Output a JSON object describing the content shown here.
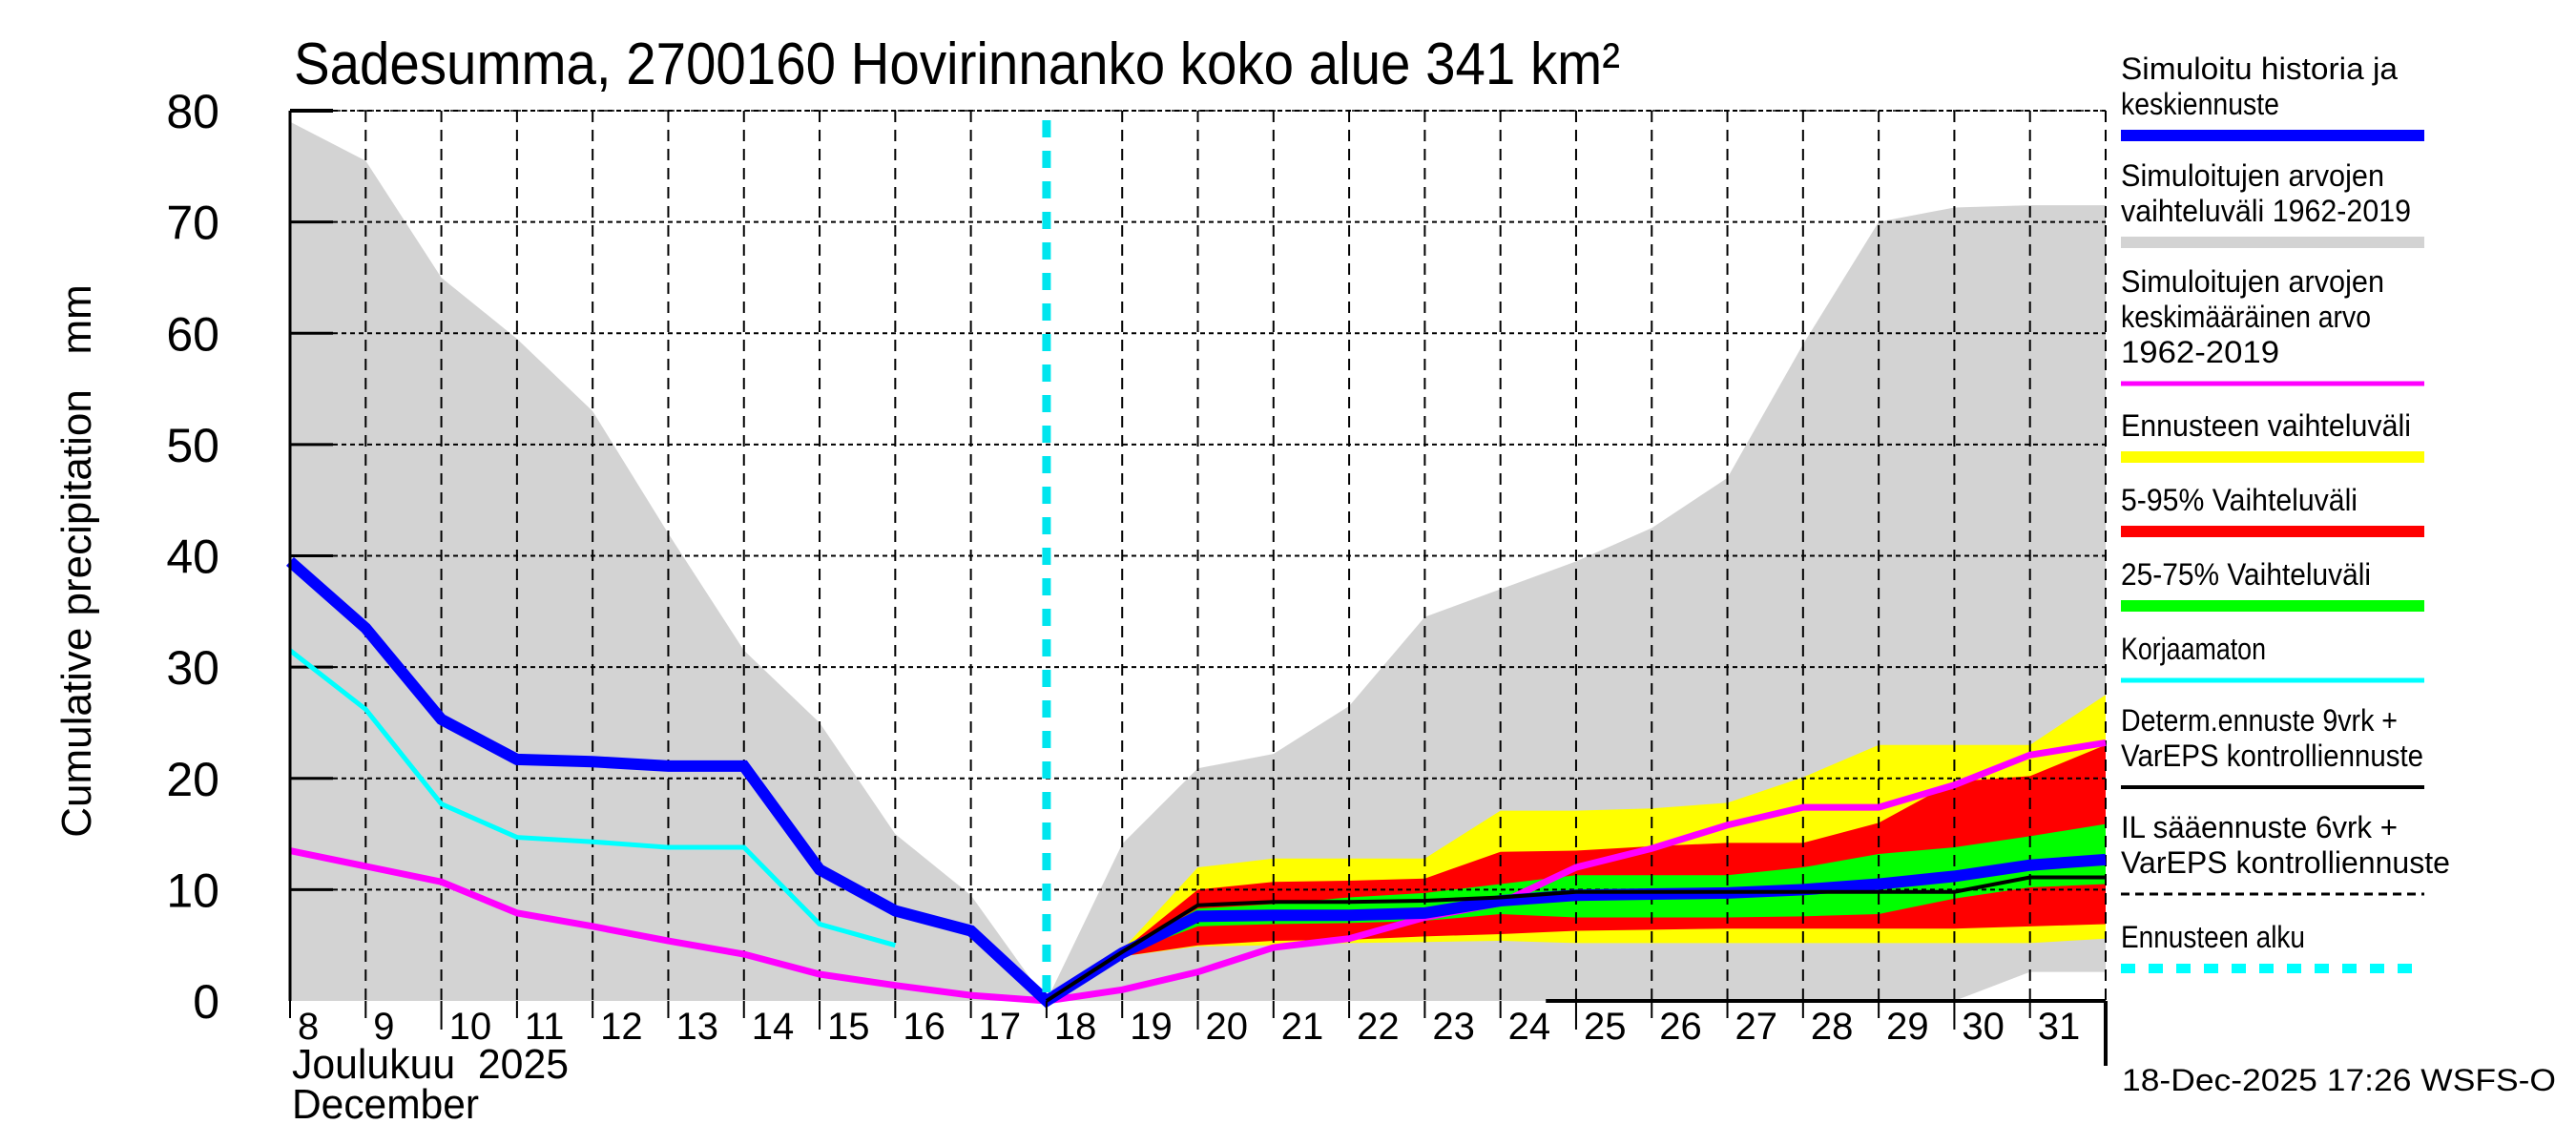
{
  "chart_data": {
    "type": "area",
    "title": "Sadesumma, 2700160 Hovirinnanko koko alue 341 km²",
    "ylabel": "Cumulative precipitation   mm",
    "xlabel_line1": "Joulukuu  2025",
    "xlabel_line2": "December",
    "timestamp": "18-Dec-2025 17:26 WSFS-O",
    "ylim": [
      0,
      80
    ],
    "yticks": [
      0,
      10,
      20,
      30,
      40,
      50,
      60,
      70,
      80
    ],
    "x": [
      8,
      9,
      10,
      11,
      12,
      13,
      14,
      15,
      16,
      17,
      18,
      19,
      20,
      21,
      22,
      23,
      24,
      25,
      26,
      27,
      28,
      29,
      30,
      31,
      32
    ],
    "xtick_labels": [
      "8",
      "9",
      "10",
      "11",
      "12",
      "13",
      "14",
      "15",
      "16",
      "17",
      "18",
      "19",
      "20",
      "21",
      "22",
      "23",
      "24",
      "25",
      "26",
      "27",
      "28",
      "29",
      "30",
      "31"
    ],
    "xlim": [
      8,
      32
    ],
    "forecast_start": 18,
    "grid": true,
    "legend_position": "right",
    "bands": [
      {
        "name": "Simuloitujen arvojen vaihteluväli 1962-2019",
        "color": "#d3d3d3",
        "x": [
          8,
          9,
          10,
          11,
          12,
          13,
          14,
          15,
          16,
          17,
          18,
          19,
          20,
          21,
          22,
          23,
          24,
          25,
          26,
          27,
          28,
          29,
          30,
          31,
          32
        ],
        "upper": [
          79,
          75.5,
          65,
          59.5,
          53,
          42,
          31.5,
          25,
          15,
          9.5,
          0,
          14.1,
          20.9,
          22.2,
          26.5,
          34.5,
          37,
          39.5,
          42.5,
          47,
          59,
          70,
          71.3,
          71.5,
          71.5
        ],
        "lower": [
          0,
          0,
          0,
          0,
          0,
          0,
          0,
          0,
          0,
          0,
          0,
          0,
          0,
          0,
          0,
          0,
          0,
          0,
          0,
          0,
          0,
          0,
          0,
          2.6,
          2.6
        ]
      },
      {
        "name": "Ennusteen vaihteluväli",
        "color": "#ffff00",
        "x": [
          18,
          19,
          20,
          21,
          22,
          23,
          24,
          25,
          26,
          27,
          28,
          29,
          30,
          31,
          32
        ],
        "upper": [
          0,
          4.6,
          12,
          12.8,
          12.8,
          12.8,
          17.1,
          17.1,
          17.3,
          17.8,
          20.1,
          23,
          23,
          23,
          27.5
        ],
        "lower": [
          0,
          4.0,
          4.9,
          5.0,
          5.2,
          5.3,
          5.4,
          5.2,
          5.2,
          5.2,
          5.2,
          5.2,
          5.2,
          5.2,
          5.6
        ]
      },
      {
        "name": "5-95% Vaihteluväli",
        "color": "#ff0000",
        "x": [
          18,
          19,
          20,
          21,
          22,
          23,
          24,
          25,
          26,
          27,
          28,
          29,
          30,
          31,
          32
        ],
        "upper": [
          0,
          4.5,
          10,
          10.7,
          10.8,
          11,
          13.4,
          13.5,
          13.9,
          14.2,
          14.2,
          16,
          19.7,
          20.2,
          23
        ],
        "lower": [
          0,
          4.0,
          5.0,
          5.4,
          5.5,
          5.8,
          6.0,
          6.3,
          6.4,
          6.5,
          6.5,
          6.5,
          6.5,
          6.7,
          6.9
        ]
      },
      {
        "name": "25-75% Vaihteluväli",
        "color": "#00ff00",
        "x": [
          18,
          19,
          20,
          21,
          22,
          23,
          24,
          25,
          26,
          27,
          28,
          29,
          30,
          31,
          32
        ],
        "upper": [
          0,
          4.4,
          8.3,
          8.7,
          9.3,
          9.7,
          10.5,
          11.3,
          11.3,
          11.3,
          12,
          13.2,
          13.8,
          14.8,
          15.9
        ],
        "lower": [
          0,
          4.2,
          6.7,
          6.9,
          7.0,
          7.2,
          7.8,
          7.5,
          7.5,
          7.5,
          7.6,
          7.8,
          9.2,
          10.2,
          10.5
        ]
      }
    ],
    "series": [
      {
        "name": "Simuloitu historia ja keskiennuste",
        "color": "#0000ff",
        "x": [
          8,
          9,
          10,
          11,
          12,
          13,
          14,
          15,
          16,
          17,
          18,
          19,
          20,
          21,
          22,
          23,
          24,
          25,
          26,
          27,
          28,
          29,
          30,
          31,
          32
        ],
        "values": [
          39.5,
          33.5,
          25.3,
          21.7,
          21.5,
          21.1,
          21.1,
          11.8,
          8.1,
          6.3,
          0,
          4.3,
          7.6,
          7.7,
          7.7,
          7.9,
          9.0,
          9.5,
          9.6,
          9.7,
          10.0,
          10.5,
          11.2,
          12.2,
          12.7
        ]
      },
      {
        "name": "Simuloitujen arvojen keskimääräinen arvo 1962-2019",
        "color": "#ff00ff",
        "x": [
          8,
          9,
          10,
          11,
          12,
          13,
          14,
          15,
          16,
          17,
          18,
          19,
          20,
          21,
          22,
          23,
          24,
          25,
          26,
          27,
          28,
          29,
          30,
          31,
          32
        ],
        "values": [
          13.5,
          12.1,
          10.7,
          7.9,
          6.7,
          5.4,
          4.2,
          2.4,
          1.4,
          0.5,
          0,
          1.0,
          2.6,
          4.8,
          5.6,
          7.5,
          8.8,
          12.0,
          13.7,
          15.8,
          17.4,
          17.4,
          19.4,
          22.1,
          23.2
        ]
      },
      {
        "name": "Korjaamaton",
        "color": "#00ffff",
        "x": [
          8,
          9,
          10,
          11,
          12,
          13,
          14,
          15,
          16
        ],
        "values": [
          31.5,
          26.2,
          17.7,
          14.7,
          14.3,
          13.8,
          13.8,
          6.9,
          5.0
        ]
      },
      {
        "name": "Determ.ennuste 9vrk + VarEPS kontrolliennuste",
        "color": "#000000",
        "x": [
          18,
          19,
          20,
          21,
          22,
          23,
          24,
          25,
          26,
          27,
          28,
          29,
          30,
          31,
          32
        ],
        "values": [
          0,
          4.4,
          8.6,
          8.9,
          8.9,
          9.0,
          9.3,
          9.8,
          9.8,
          9.8,
          9.8,
          9.8,
          9.8,
          11.1,
          11.1
        ]
      }
    ],
    "legend": [
      {
        "lines": [
          "Simuloitu historia ja",
          "keskiennuste"
        ],
        "color": "#0000ff",
        "style": "thick"
      },
      {
        "lines": [
          "Simuloitujen arvojen",
          "vaihteluväli 1962-2019"
        ],
        "color": "#d3d3d3",
        "style": "thick"
      },
      {
        "lines": [
          "Simuloitujen arvojen",
          "keskimääräinen arvo",
          "   1962-2019"
        ],
        "color": "#ff00ff",
        "style": "medium"
      },
      {
        "lines": [
          "Ennusteen vaihteluväli"
        ],
        "color": "#ffff00",
        "style": "thick"
      },
      {
        "lines": [
          "5-95% Vaihteluväli"
        ],
        "color": "#ff0000",
        "style": "thick"
      },
      {
        "lines": [
          "25-75% Vaihteluväli"
        ],
        "color": "#00ff00",
        "style": "thick"
      },
      {
        "lines": [
          "Korjaamaton"
        ],
        "color": "#00ffff",
        "style": "medium"
      },
      {
        "lines": [
          "Determ.ennuste 9vrk +",
          "VarEPS kontrolliennuste"
        ],
        "color": "#000000",
        "style": "thin"
      },
      {
        "lines": [
          "IL sääennuste 6vrk  +",
          "  VarEPS kontrolliennuste"
        ],
        "color": "#000000",
        "style": "dashed"
      },
      {
        "lines": [
          "Ennusteen alku"
        ],
        "color": "#00ffff",
        "style": "dotted"
      }
    ]
  }
}
